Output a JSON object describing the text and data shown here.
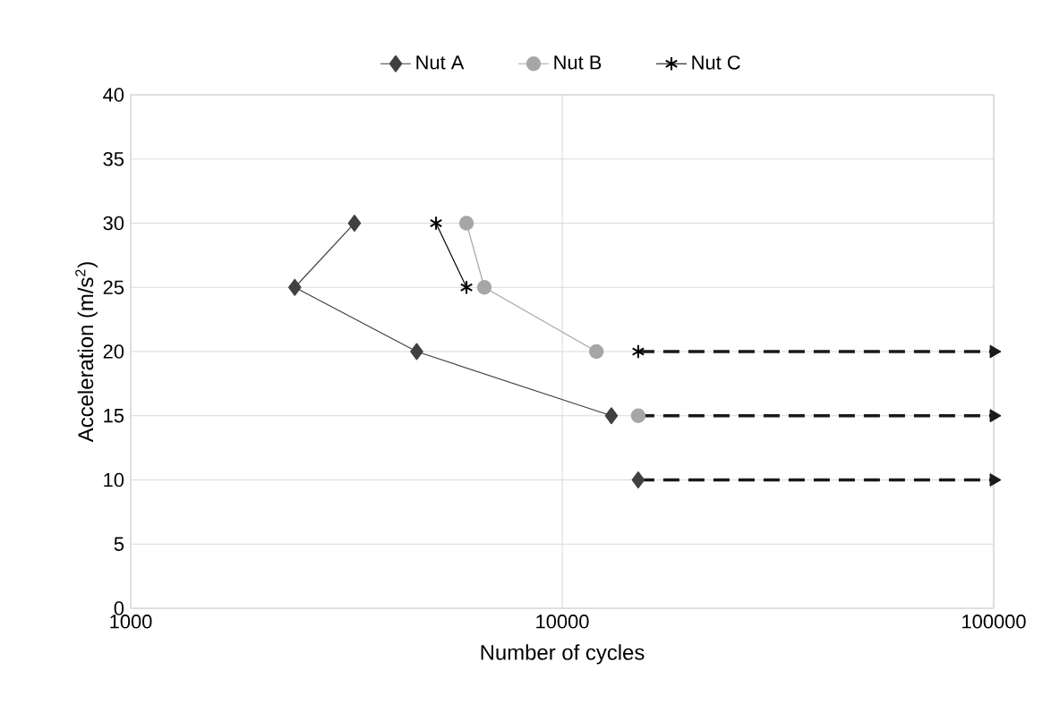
{
  "chart_data": {
    "type": "line",
    "xlabel": "Number of cycles",
    "ylabel": "Acceleration (m/s$^{2}$)",
    "log": "x",
    "xlim": [
      1000,
      100000
    ],
    "xticks": [
      1000,
      10000,
      100000
    ],
    "ylim": [
      0,
      40
    ],
    "yticks": [
      0,
      5,
      10,
      15,
      20,
      25,
      30,
      35,
      40
    ],
    "grid": true,
    "legend": "top",
    "series": [
      {
        "name": "Nut A",
        "color": "#404040",
        "marker": "diamond",
        "x": [
          3300,
          2400,
          4600,
          13000,
          null,
          15000
        ],
        "values": [
          30,
          25,
          20,
          15,
          null,
          10
        ]
      },
      {
        "name": "Nut B",
        "color": "#a6a6a6",
        "marker": "circle",
        "x": [
          6000,
          6600,
          12000,
          null,
          15000
        ],
        "values": [
          30,
          25,
          20,
          null,
          15
        ]
      },
      {
        "name": "Nut C",
        "color": "#000000",
        "marker": "cross",
        "x": [
          5100,
          6000,
          null,
          15000
        ],
        "values": [
          30,
          25,
          null,
          20
        ]
      },
      {
        "color": "#1a1a1a",
        "marker": "triangle",
        "line_style": "dashed",
        "x": [
          15000,
          100000
        ],
        "values": [
          20,
          20
        ]
      },
      {
        "color": "#1a1a1a",
        "marker": "triangle",
        "line_style": "dashed",
        "x": [
          15000,
          100000
        ],
        "values": [
          15,
          15
        ]
      },
      {
        "color": "#1a1a1a",
        "marker": "triangle",
        "line_style": "dashed",
        "x": [
          15000,
          100000
        ],
        "values": [
          10,
          10
        ]
      }
    ]
  }
}
